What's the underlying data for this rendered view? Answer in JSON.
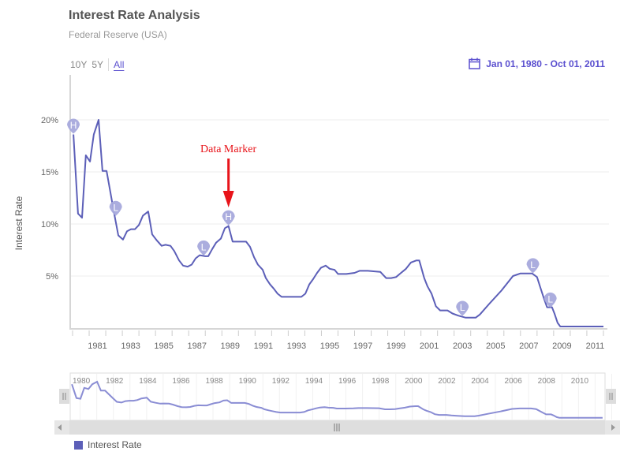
{
  "header": {
    "title": "Interest Rate Analysis",
    "subtitle": "Federal Reserve (USA)"
  },
  "range_selector": {
    "buttons": [
      {
        "label": "10Y",
        "active": false
      },
      {
        "label": "5Y",
        "active": false
      },
      {
        "label": "All",
        "active": true
      }
    ]
  },
  "date_range": {
    "icon": "calendar-icon",
    "label": "Jan 01, 1980 - Oct 01, 2011"
  },
  "annotation": {
    "label": "Data Marker",
    "color": "#e8141a",
    "target_year": 1989.4
  },
  "colors": {
    "series": "#5c5fb8",
    "marker": "#a7a9dc",
    "accent": "#5a4fcf",
    "grid": "#eeeeee",
    "navigator_series": "#8a8dd4"
  },
  "navigator": {
    "tick_labels": [
      "1980",
      "1982",
      "1984",
      "1986",
      "1988",
      "1990",
      "1992",
      "1994",
      "1996",
      "1998",
      "2000",
      "2002",
      "2004",
      "2006",
      "2008",
      "2010"
    ],
    "left_handle_icon": "grip-icon",
    "right_handle_icon": "grip-icon",
    "scroll_left_icon": "arrow-left-icon",
    "scroll_right_icon": "arrow-right-icon",
    "scroll_thumb_icon": "grip-icon"
  },
  "legend": {
    "items": [
      {
        "label": "Interest Rate",
        "color": "#5c5fb8"
      }
    ]
  },
  "chart_data": {
    "type": "line",
    "title": "Interest Rate Analysis",
    "subtitle": "Federal Reserve (USA)",
    "xlabel": "",
    "ylabel": "Interest Rate",
    "xlim": [
      1980,
      2012.1
    ],
    "ylim": [
      0,
      22
    ],
    "x_ticks": [
      "1981",
      "1983",
      "1985",
      "1987",
      "1989",
      "1991",
      "1993",
      "1995",
      "1997",
      "1999",
      "2001",
      "2003",
      "2005",
      "2007",
      "2009",
      "2011"
    ],
    "y_ticks": [
      "5%",
      "10%",
      "15%",
      "20%"
    ],
    "y_tick_values": [
      5,
      10,
      15,
      20
    ],
    "grid": true,
    "legend": "bottom-left",
    "series": [
      {
        "name": "Interest Rate",
        "x": [
          1980.05,
          1980.33,
          1980.57,
          1980.8,
          1981.05,
          1981.28,
          1981.57,
          1981.8,
          1982.05,
          1982.33,
          1982.52,
          1982.76,
          1983.04,
          1983.28,
          1983.52,
          1983.76,
          1984.0,
          1984.24,
          1984.56,
          1984.8,
          1985.09,
          1985.37,
          1985.6,
          1985.9,
          1986.13,
          1986.42,
          1986.66,
          1986.94,
          1987.18,
          1987.42,
          1987.66,
          1988.0,
          1988.18,
          1988.42,
          1988.65,
          1988.94,
          1989.18,
          1989.4,
          1989.65,
          1989.9,
          1990.17,
          1990.46,
          1990.7,
          1990.94,
          1991.17,
          1991.46,
          1991.65,
          1991.9,
          1992.12,
          1992.36,
          1992.6,
          1993.07,
          1993.79,
          1994.03,
          1994.27,
          1994.5,
          1994.74,
          1994.98,
          1995.26,
          1995.5,
          1995.79,
          1996.0,
          1996.5,
          1997.0,
          1997.3,
          1997.8,
          1998.55,
          1998.9,
          1999.2,
          1999.5,
          1999.8,
          2000.1,
          2000.4,
          2000.73,
          2000.9,
          2001.2,
          2001.4,
          2001.64,
          2001.9,
          2002.16,
          2002.6,
          2002.9,
          2003.25,
          2003.7,
          2004.3,
          2004.55,
          2005.1,
          2005.85,
          2006.55,
          2007.0,
          2007.7,
          2008.0,
          2008.2,
          2008.4,
          2008.6,
          2008.9,
          2009.05,
          2009.24,
          2009.4,
          2012.0
        ],
        "values": [
          18.6,
          11.0,
          10.6,
          16.6,
          16.0,
          18.6,
          20.0,
          15.1,
          15.1,
          12.6,
          10.9,
          8.9,
          8.5,
          9.3,
          9.5,
          9.5,
          9.9,
          10.8,
          11.2,
          9.0,
          8.4,
          7.9,
          8.0,
          7.9,
          7.4,
          6.5,
          6.0,
          5.9,
          6.1,
          6.7,
          7.0,
          6.9,
          6.9,
          7.6,
          8.2,
          8.6,
          9.6,
          9.8,
          8.3,
          8.3,
          8.3,
          8.3,
          7.8,
          6.8,
          6.1,
          5.6,
          4.8,
          4.2,
          3.8,
          3.3,
          3.0,
          3.0,
          3.0,
          3.3,
          4.2,
          4.7,
          5.3,
          5.8,
          6.0,
          5.7,
          5.6,
          5.2,
          5.2,
          5.3,
          5.5,
          5.5,
          5.4,
          4.8,
          4.8,
          4.9,
          5.3,
          5.7,
          6.3,
          6.5,
          6.5,
          4.8,
          4.0,
          3.3,
          2.1,
          1.7,
          1.7,
          1.4,
          1.2,
          1.0,
          1.0,
          1.3,
          2.3,
          3.6,
          5.0,
          5.25,
          5.25,
          4.9,
          3.9,
          2.9,
          2.0,
          2.0,
          1.4,
          0.5,
          0.15,
          0.15
        ]
      }
    ],
    "markers": [
      {
        "label": "H",
        "x": 1980.05,
        "value": 18.6
      },
      {
        "label": "L",
        "x": 1982.6,
        "value": 10.7
      },
      {
        "label": "L",
        "x": 1987.9,
        "value": 6.9
      },
      {
        "label": "H",
        "x": 1989.4,
        "value": 9.8
      },
      {
        "label": "L",
        "x": 2003.5,
        "value": 1.1
      },
      {
        "label": "L",
        "x": 2007.75,
        "value": 5.2
      },
      {
        "label": "L",
        "x": 2008.8,
        "value": 1.9
      }
    ],
    "annotations": [
      {
        "text": "Data Marker",
        "x": 1989.4
      }
    ]
  }
}
